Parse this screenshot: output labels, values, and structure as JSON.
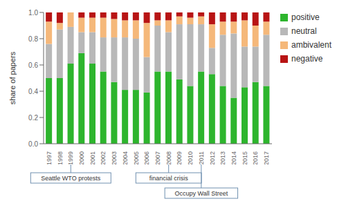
{
  "chart_data": {
    "type": "bar",
    "stacked": true,
    "categories": [
      "1997",
      "1998",
      "1999",
      "2000",
      "2001",
      "2002",
      "2003",
      "2004",
      "2005",
      "2006",
      "2007",
      "2008",
      "2009",
      "2010",
      "2011",
      "2012",
      "2013",
      "2014",
      "2015",
      "2016",
      "2017"
    ],
    "series": [
      {
        "name": "positive",
        "color": "#2db52d",
        "values": [
          0.5,
          0.5,
          0.61,
          0.69,
          0.61,
          0.55,
          0.47,
          0.41,
          0.41,
          0.39,
          0.55,
          0.55,
          0.49,
          0.44,
          0.55,
          0.53,
          0.44,
          0.35,
          0.43,
          0.47,
          0.44
        ]
      },
      {
        "name": "neutral",
        "color": "#b8b8b8",
        "values": [
          0.26,
          0.37,
          0.28,
          0.16,
          0.24,
          0.26,
          0.34,
          0.4,
          0.39,
          0.27,
          0.35,
          0.3,
          0.42,
          0.47,
          0.36,
          0.2,
          0.39,
          0.49,
          0.31,
          0.27,
          0.39
        ]
      },
      {
        "name": "ambivalent",
        "color": "#f5b87a",
        "values": [
          0.17,
          0.05,
          0.11,
          0.11,
          0.11,
          0.15,
          0.14,
          0.13,
          0.14,
          0.26,
          0.04,
          0.09,
          0.06,
          0.05,
          0.06,
          0.18,
          0.1,
          0.09,
          0.2,
          0.16,
          0.1
        ]
      },
      {
        "name": "negative",
        "color": "#b81414",
        "values": [
          0.07,
          0.08,
          0.0,
          0.04,
          0.04,
          0.04,
          0.05,
          0.06,
          0.06,
          0.08,
          0.06,
          0.06,
          0.03,
          0.04,
          0.03,
          0.09,
          0.07,
          0.07,
          0.06,
          0.1,
          0.07
        ]
      }
    ],
    "ylabel": "share of papers",
    "ylim": [
      0,
      1.0
    ],
    "yticks": [
      {
        "value": 0,
        "label": "0.0"
      },
      0.2,
      0.4,
      0.6,
      0.8,
      {
        "value": 1,
        "label": "1.0"
      }
    ],
    "grid": false,
    "legend": "right",
    "annotations": [
      {
        "text": "Seattle WTO protests",
        "category": "1999",
        "color": "#7090b0"
      },
      {
        "text": "financial crisis",
        "category": "2008",
        "color": "#7090b0"
      },
      {
        "text": "Occupy Wall Street",
        "category": "2011",
        "color": "#7090b0"
      }
    ]
  }
}
